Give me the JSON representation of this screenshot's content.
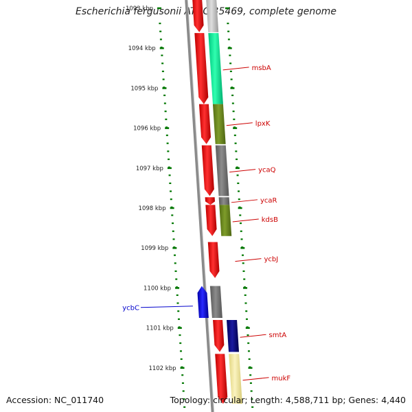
{
  "title": "Escherichia fergusonii ATCC 35469, complete genome",
  "footer": {
    "accession": "Accession: NC_011740",
    "summary": "Topology: circular; Length: 4,588,711 bp; Genes: 4,440"
  },
  "colors": {
    "forward_cds": "#ff0000",
    "reverse_cds": "#0000ff",
    "gene_label_forward": "#cc0000",
    "gene_label_reverse": "#0000cc",
    "tick": "#007700",
    "backbone": "#808080",
    "cog_gray": "#777777",
    "cog_green": "#00f0a0",
    "cog_olive": "#6b8a1c",
    "cog_navy": "#000080",
    "cog_pale": "#f2e8a0"
  },
  "axis": {
    "unit": "kbp",
    "labels": [
      {
        "kbp": 1093,
        "text": "1093 kbp"
      },
      {
        "kbp": 1094,
        "text": "1094 kbp"
      },
      {
        "kbp": 1095,
        "text": "1095 kbp"
      },
      {
        "kbp": 1096,
        "text": "1096 kbp"
      },
      {
        "kbp": 1097,
        "text": "1097 kbp"
      },
      {
        "kbp": 1098,
        "text": "1098 kbp"
      },
      {
        "kbp": 1099,
        "text": "1099 kbp"
      },
      {
        "kbp": 1100,
        "text": "1100 kbp"
      },
      {
        "kbp": 1101,
        "text": "1101 kbp"
      },
      {
        "kbp": 1102,
        "text": "1102 kbp"
      }
    ]
  },
  "genes": [
    {
      "name": "",
      "strand": "+",
      "start_kbp": 1092.6,
      "end_kbp": 1093.6,
      "cog": "gray"
    },
    {
      "name": "msbA",
      "strand": "+",
      "start_kbp": 1093.62,
      "end_kbp": 1095.4,
      "cog": "green"
    },
    {
      "name": "lpxK",
      "strand": "+",
      "start_kbp": 1095.4,
      "end_kbp": 1096.4,
      "cog": "olive"
    },
    {
      "name": "ycaQ",
      "strand": "+",
      "start_kbp": 1096.43,
      "end_kbp": 1097.7,
      "cog": "gray"
    },
    {
      "name": "ycaR",
      "strand": "+",
      "start_kbp": 1097.73,
      "end_kbp": 1097.92,
      "cog": "gray"
    },
    {
      "name": "kdsB",
      "strand": "+",
      "start_kbp": 1097.92,
      "end_kbp": 1098.7,
      "cog": "olive"
    },
    {
      "name": "ycbJ",
      "strand": "+",
      "start_kbp": 1098.85,
      "end_kbp": 1099.75,
      "cog": ""
    },
    {
      "name": "ycbC",
      "strand": "-",
      "start_kbp": 1099.95,
      "end_kbp": 1100.75,
      "cog": "gray"
    },
    {
      "name": "smtA",
      "strand": "+",
      "start_kbp": 1100.8,
      "end_kbp": 1101.6,
      "cog": "navy"
    },
    {
      "name": "mukF",
      "strand": "+",
      "start_kbp": 1101.65,
      "end_kbp": 1102.9,
      "cog": "pale"
    }
  ]
}
